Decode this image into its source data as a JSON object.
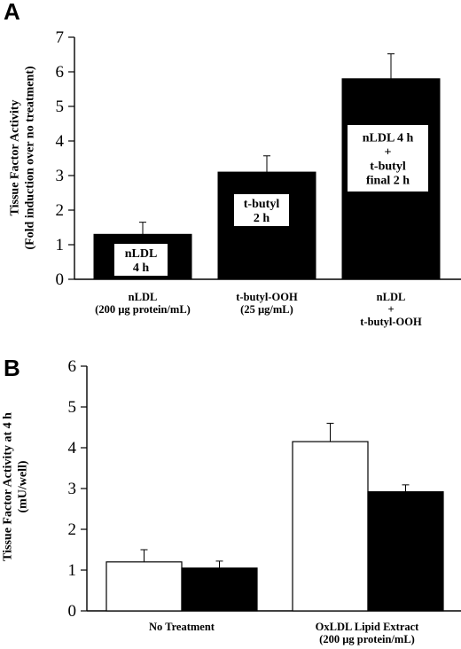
{
  "chart_data": [
    {
      "panel": "A",
      "type": "bar",
      "ylabel": [
        "Tissue Factor Activity",
        "(Fold induction over no treatment)"
      ],
      "ylim": [
        0,
        7
      ],
      "yticks": [
        0,
        1,
        2,
        3,
        4,
        5,
        6,
        7
      ],
      "categories": [
        [
          "nLDL",
          "(200 µg protein/mL)"
        ],
        [
          "t-butyl-OOH",
          "(25 µg/mL)"
        ],
        [
          "nLDL",
          "+",
          "t-butyl-OOH"
        ]
      ],
      "values": [
        1.3,
        3.1,
        5.8
      ],
      "errors": [
        0.35,
        0.47,
        0.72
      ],
      "bar_labels": [
        [
          "nLDL",
          "4 h"
        ],
        [
          "t-butyl",
          "2 h"
        ],
        [
          "nLDL 4 h",
          "+",
          "t-butyl",
          "final 2 h"
        ]
      ],
      "bar_color": "#000000"
    },
    {
      "panel": "B",
      "type": "bar",
      "ylabel": [
        "Tissue Factor Activity at 4 h",
        "(mU/well)"
      ],
      "ylim": [
        0,
        6
      ],
      "yticks": [
        0,
        1,
        2,
        3,
        4,
        5,
        6
      ],
      "categories": [
        [
          "No Treatment"
        ],
        [
          "OxLDL Lipid Extract",
          "(200 µg protein/mL)"
        ]
      ],
      "series": [
        {
          "values": [
            1.2,
            4.15
          ],
          "errors": [
            0.3,
            0.45
          ],
          "color": "#ffffff"
        },
        {
          "values": [
            1.05,
            2.92
          ],
          "errors": [
            0.17,
            0.17
          ],
          "color": "#000000"
        }
      ]
    }
  ]
}
